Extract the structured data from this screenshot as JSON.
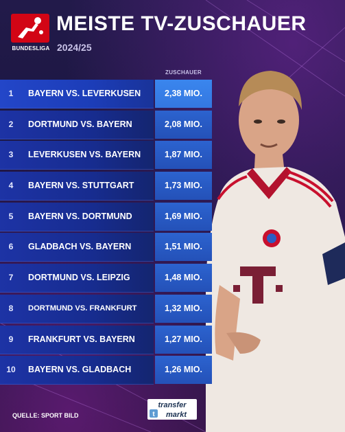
{
  "brand": {
    "league_name": "BUNDESLIGA",
    "logo_colors": {
      "background": "#d20515",
      "figure": "#ffffff"
    }
  },
  "header": {
    "title": "MEISTE TV-ZUSCHAUER",
    "season": "2024/25"
  },
  "table": {
    "column_header": "ZUSCHAUER",
    "rows": [
      {
        "rank": "1",
        "match": "BAYERN VS. LEVERKUSEN",
        "viewers": "2,38 MIO."
      },
      {
        "rank": "2",
        "match": "DORTMUND VS. BAYERN",
        "viewers": "2,08 MIO."
      },
      {
        "rank": "3",
        "match": "LEVERKUSEN VS. BAYERN",
        "viewers": "1,87 MIO."
      },
      {
        "rank": "4",
        "match": "BAYERN VS. STUTTGART",
        "viewers": "1,73 MIO."
      },
      {
        "rank": "5",
        "match": "BAYERN VS. DORTMUND",
        "viewers": "1,69 MIO."
      },
      {
        "rank": "6",
        "match": "GLADBACH VS. BAYERN",
        "viewers": "1,51 MIO."
      },
      {
        "rank": "7",
        "match": "DORTMUND VS. LEIPZIG",
        "viewers": "1,48 MIO."
      },
      {
        "rank": "8",
        "match": "DORTMUND VS. FRANKFURT",
        "viewers": "1,32 MIO."
      },
      {
        "rank": "9",
        "match": "FRANKFURT VS. BAYERN",
        "viewers": "1,27 MIO."
      },
      {
        "rank": "10",
        "match": "BAYERN VS. GLADBACH",
        "viewers": "1,26 MIO."
      }
    ]
  },
  "footer": {
    "source": "QUELLE: SPORT BILD",
    "tm_logo_top": "transfer",
    "tm_logo_bottom": "markt"
  },
  "colors": {
    "background": "#1a1640",
    "row_blue": "#172c8f",
    "value_blue": "#2c63cf",
    "highlight_blue": "#3a86ee",
    "jersey": "#efe8e2",
    "accent_red": "#c8102e"
  }
}
